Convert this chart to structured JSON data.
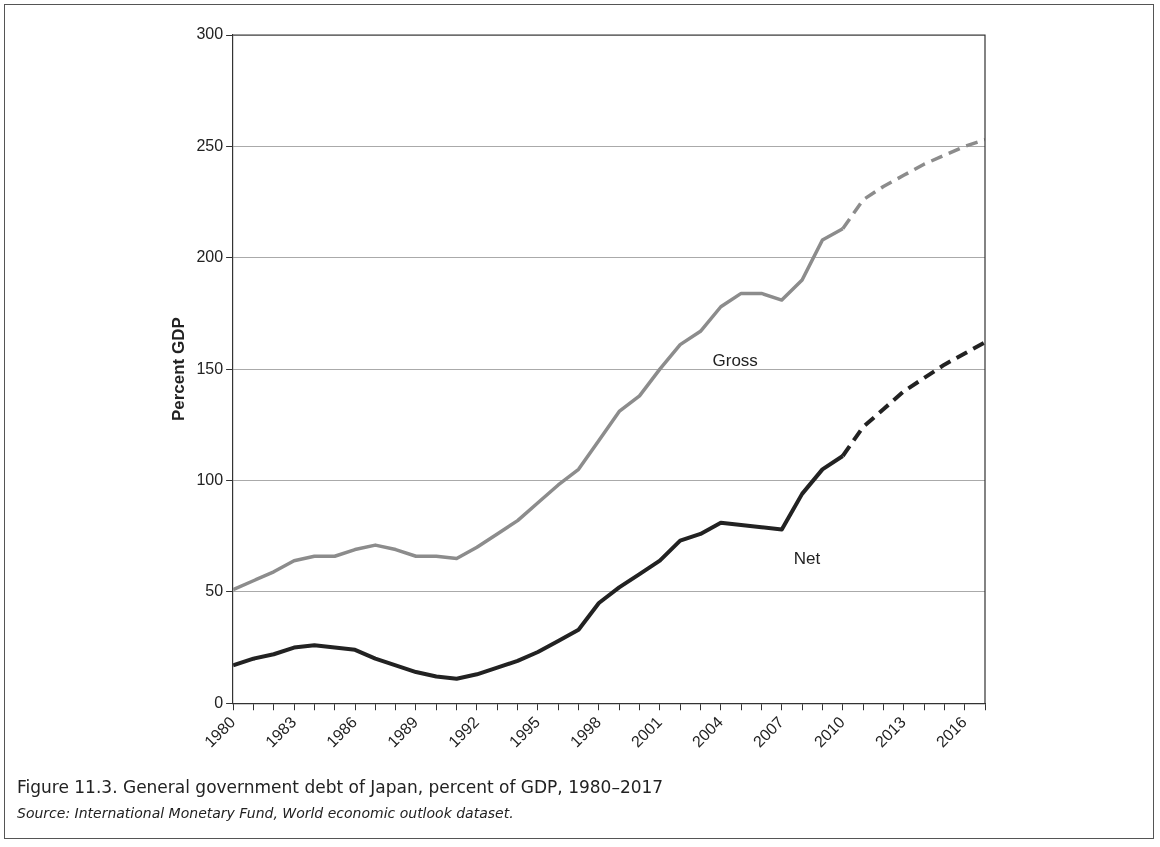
{
  "chart_data": {
    "type": "line",
    "title": "Figure 11.3. General government debt of Japan, percent of GDP, 1980–2017",
    "ylabel": "Percent GDP",
    "annotations": [
      "Source: International Monetary Fund, World economic outlook dataset."
    ],
    "x": [
      1980,
      1981,
      1982,
      1983,
      1984,
      1985,
      1986,
      1987,
      1988,
      1989,
      1990,
      1991,
      1992,
      1993,
      1994,
      1995,
      1996,
      1997,
      1998,
      1999,
      2000,
      2001,
      2002,
      2003,
      2004,
      2005,
      2006,
      2007,
      2008,
      2009,
      2010
    ],
    "series": [
      {
        "name": "Gross",
        "color": "#8c8c8c",
        "line_style": "solid",
        "values": [
          51,
          55,
          59,
          64,
          66,
          66,
          69,
          71,
          69,
          66,
          66,
          65,
          70,
          76,
          82,
          90,
          98,
          105,
          118,
          131,
          138,
          150,
          161,
          167,
          178,
          184,
          184,
          181,
          190,
          208,
          213
        ]
      },
      {
        "color": "#8c8c8c",
        "line_style": "dashed",
        "x": [
          2010,
          2011,
          2012,
          2013,
          2014,
          2015,
          2016,
          2017
        ],
        "values": [
          213,
          226,
          232,
          237,
          242,
          246,
          250,
          253
        ]
      },
      {
        "name": "Net",
        "color": "#222222",
        "line_style": "solid",
        "values": [
          17,
          20,
          22,
          25,
          26,
          25,
          24,
          20,
          17,
          14,
          12,
          11,
          13,
          16,
          19,
          23,
          28,
          33,
          45,
          52,
          58,
          64,
          73,
          76,
          81,
          80,
          79,
          78,
          94,
          105,
          111
        ]
      },
      {
        "color": "#222222",
        "line_style": "dashed",
        "x": [
          2010,
          2011,
          2012,
          2013,
          2014,
          2015,
          2016,
          2017
        ],
        "values": [
          111,
          124,
          132,
          140,
          146,
          152,
          157,
          162
        ]
      }
    ],
    "xlim": [
      1980,
      2017
    ],
    "xticks": [
      1980,
      {
        "value": 1981,
        "label": null
      },
      {
        "value": 1982,
        "label": null
      },
      1983,
      {
        "value": 1984,
        "label": null
      },
      {
        "value": 1985,
        "label": null
      },
      1986,
      {
        "value": 1987,
        "label": null
      },
      {
        "value": 1988,
        "label": null
      },
      1989,
      {
        "value": 1990,
        "label": null
      },
      {
        "value": 1991,
        "label": null
      },
      1992,
      {
        "value": 1993,
        "label": null
      },
      {
        "value": 1994,
        "label": null
      },
      1995,
      {
        "value": 1996,
        "label": null
      },
      {
        "value": 1997,
        "label": null
      },
      1998,
      {
        "value": 1999,
        "label": null
      },
      {
        "value": 2000,
        "label": null
      },
      2001,
      {
        "value": 2002,
        "label": null
      },
      {
        "value": 2003,
        "label": null
      },
      2004,
      {
        "value": 2005,
        "label": null
      },
      {
        "value": 2006,
        "label": null
      },
      2007,
      {
        "value": 2008,
        "label": null
      },
      {
        "value": 2009,
        "label": null
      },
      2010,
      {
        "value": 2011,
        "label": null
      },
      {
        "value": 2012,
        "label": null
      },
      2013,
      {
        "value": 2014,
        "label": null
      },
      {
        "value": 2015,
        "label": null
      },
      2016,
      {
        "value": 2017,
        "label": null
      }
    ],
    "ylim": [
      0,
      300
    ],
    "yticks": [
      0,
      50,
      100,
      150,
      200,
      250,
      300
    ],
    "grid": "y",
    "legend": false,
    "marker": "none"
  }
}
